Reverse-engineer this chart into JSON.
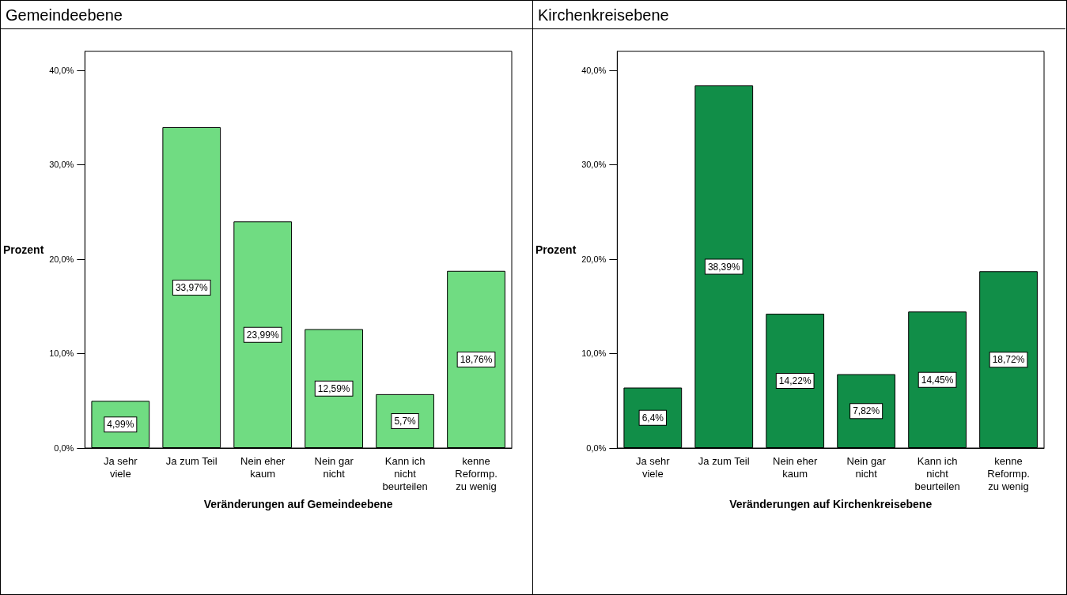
{
  "chart_data": [
    {
      "type": "bar",
      "title": "Gemeindeebene",
      "xlabel": "Veränderungen auf Gemeindeebene",
      "ylabel": "Prozent",
      "categories": [
        "Ja sehr\nviele",
        "Ja zum Teil",
        "Nein eher\nkaum",
        "Nein gar\nnicht",
        "Kann ich\nnicht\nbeurteilen",
        "kenne\nReformp.\nzu wenig"
      ],
      "values": [
        4.99,
        33.97,
        23.99,
        12.59,
        5.7,
        18.76
      ],
      "value_labels": [
        "4,99%",
        "33,97%",
        "23,99%",
        "12,59%",
        "5,7%",
        "18,76%"
      ],
      "color": "#70dc82",
      "ylim": [
        0,
        42
      ],
      "yticks": [
        {
          "value": 0,
          "label": "0,0%"
        },
        {
          "value": 10,
          "label": "10,0%"
        },
        {
          "value": 20,
          "label": "20,0%"
        },
        {
          "value": 30,
          "label": "30,0%"
        },
        {
          "value": 40,
          "label": "40,0%"
        }
      ]
    },
    {
      "type": "bar",
      "title": "Kirchenkreisebene",
      "xlabel": "Veränderungen auf Kirchenkreisebene",
      "ylabel": "Prozent",
      "categories": [
        "Ja sehr\nviele",
        "Ja zum Teil",
        "Nein eher\nkaum",
        "Nein gar\nnicht",
        "Kann ich\nnicht\nbeurteilen",
        "kenne\nReformp.\nzu wenig"
      ],
      "values": [
        6.4,
        38.39,
        14.22,
        7.82,
        14.45,
        18.72
      ],
      "value_labels": [
        "6,4%",
        "38,39%",
        "14,22%",
        "7,82%",
        "14,45%",
        "18,72%"
      ],
      "color": "#118e48",
      "ylim": [
        0,
        42
      ],
      "yticks": [
        {
          "value": 0,
          "label": "0,0%"
        },
        {
          "value": 10,
          "label": "10,0%"
        },
        {
          "value": 20,
          "label": "20,0%"
        },
        {
          "value": 30,
          "label": "30,0%"
        },
        {
          "value": 40,
          "label": "40,0%"
        }
      ]
    }
  ]
}
